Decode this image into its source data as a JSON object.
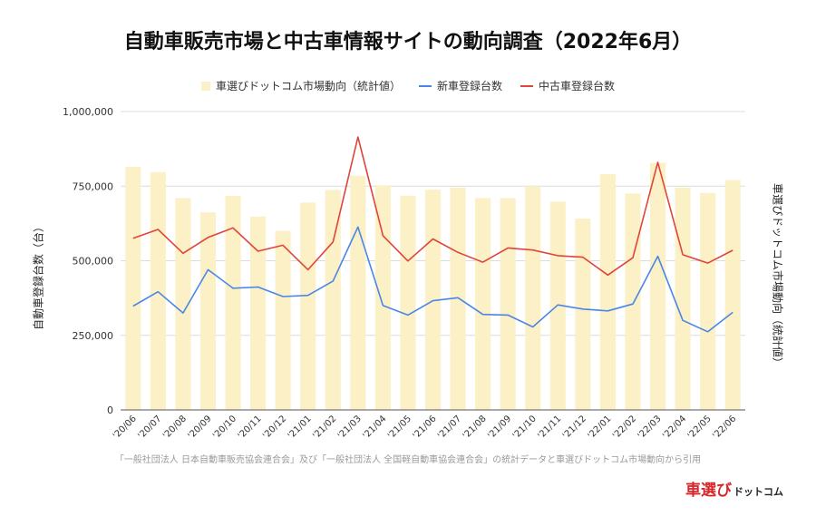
{
  "chart_data": {
    "type": "bar+line",
    "title": "自動車販売市場と中古車情報サイトの動向調査（2022年6月）",
    "ylabel_left": "自動車登録台数（台）",
    "ylabel_right": "車選びドットコム市場動向（統計値）",
    "ylim": [
      0,
      1000000
    ],
    "y_ticks": [
      0,
      250000,
      500000,
      750000,
      1000000
    ],
    "y_tick_labels": [
      "0",
      "250,000",
      "500,000",
      "750,000",
      "1,000,000"
    ],
    "categories": [
      "'20/06",
      "'20/07",
      "'20/08",
      "'20/09",
      "'20/10",
      "'20/11",
      "'20/12",
      "'21/01",
      "'21/02",
      "'21/03",
      "'21/04",
      "'21/05",
      "'21/06",
      "'21/07",
      "'21/08",
      "'21/09",
      "'21/10",
      "'21/11",
      "'21/12",
      "'22/01",
      "'22/02",
      "'22/03",
      "'22/04",
      "'22/05",
      "'22/06"
    ],
    "series": [
      {
        "name": "車選びドットコム市場動向（統計値）",
        "kind": "bar",
        "color": "#fbf0c6",
        "values": [
          815000,
          797000,
          710000,
          662000,
          717000,
          648000,
          600000,
          695000,
          737000,
          785000,
          753000,
          718000,
          738000,
          745000,
          710000,
          710000,
          750000,
          698000,
          641000,
          790000,
          725000,
          828000,
          745000,
          727000,
          770000
        ]
      },
      {
        "name": "新車登録台数",
        "kind": "line",
        "color": "#4a86e8",
        "values": [
          348000,
          396000,
          325000,
          470000,
          408000,
          412000,
          380000,
          384000,
          432000,
          613000,
          350000,
          318000,
          366000,
          376000,
          320000,
          318000,
          278000,
          352000,
          338000,
          332000,
          355000,
          515000,
          300000,
          262000,
          327000
        ]
      },
      {
        "name": "中古車登録台数",
        "kind": "line",
        "color": "#e0443a",
        "values": [
          575000,
          605000,
          525000,
          578000,
          610000,
          532000,
          552000,
          470000,
          563000,
          915000,
          584000,
          499000,
          573000,
          528000,
          495000,
          543000,
          536000,
          517000,
          512000,
          452000,
          510000,
          830000,
          520000,
          492000,
          535000
        ]
      }
    ]
  },
  "source_text": "「一般社団法人 日本自動車販売協会連合会」及び「一般社団法人 全国軽自動車協会連合会」の統計データと車選びドットコム市場動向から引用",
  "brand": {
    "main": "車選び",
    "sub": "ドットコム"
  }
}
